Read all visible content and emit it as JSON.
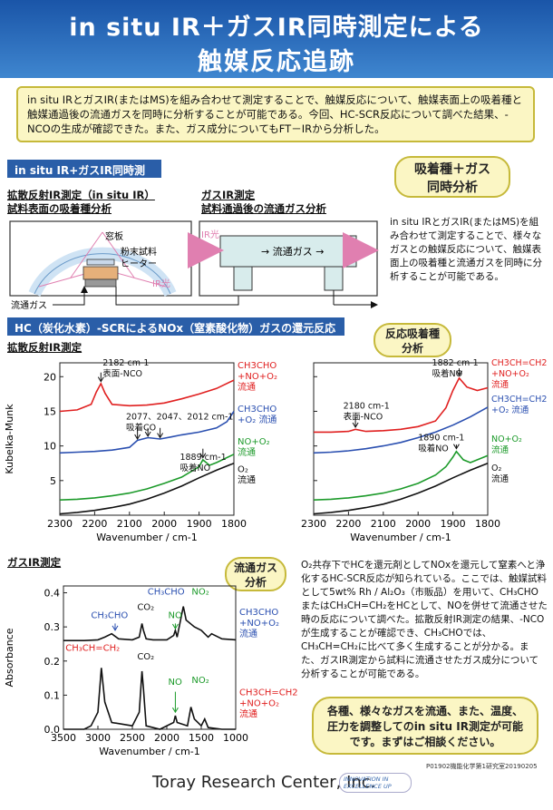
{
  "header": {
    "title_line1": "in situ IR＋ガスIR同時測定による",
    "title_line2": "触媒反応追跡"
  },
  "summary": "in situ IRとガスIR(またはMS)を組み合わせて測定することで、触媒反応について、触媒表面上の吸着種と触媒通過後の流通ガスを同時に分析することが可能である。今回、HC-SCR反応について調べた結果、-NCOの生成が確認できた。また、ガス成分についてもFT－IRから分析した。",
  "section1": {
    "bar": "in situ IR+ガスIR同時測定",
    "bubble": "吸着種＋ガス\n同時分析",
    "left_title": "拡散反射IR測定（in situ IR）",
    "left_sub": "試料表面の吸着種分析",
    "window": "窓板",
    "powder": "粉末試料",
    "heater": "ヒーター",
    "ir_light": "IR光",
    "flow_gas": "流通ガス",
    "right_title": "ガスIR測定",
    "right_sub": "試料通過後の流通ガス分析",
    "cell_label": "→ 流通ガス →",
    "ir_light2": "IR光",
    "desc": "in situ IRとガスIR(またはMS)を組み合わせて測定することで、様々なガスとの触媒反応について、触媒表面上の吸着種と流通ガスを同時に分析することが可能である。"
  },
  "section2": {
    "bar": "HC（炭化水素）-SCRによるNOx（窒素酸化物）ガスの還元反応",
    "bubble": "反応吸着種\n分析",
    "drift_title": "拡散反射IR測定",
    "gas_title": "ガスIR測定",
    "gas_bubble": "流通ガス\n分析",
    "desc": "O₂共存下でHCを還元剤としてNOxを還元して窒素へと浄化するHC-SCR反応が知られている。ここでは、触媒試料として5wt% Rh / Al₂O₃（市販品）を用いて、CH₃CHOまたはCH₃CH=CH₂をHCとして、NOを併せて流通させた時の反応について調べた。拡散反射IR測定の結果、-NCOが生成することが確認でき、CH₃CHOでは、CH₃CH=CH₂に比べて多く生成することが分かる。また、ガスIR測定から試料に流通させたガス成分について分析することが可能である。",
    "contact": "各種、様々なガスを流通、また、温度、圧力を調整してのin situ IR測定が可能です。まずはご相談ください。"
  },
  "footer": {
    "doc_id": "P01902機能化学第1研究室20190205",
    "company": "Toray Research Center, Inc.",
    "logo": "INNOVATION IN EXCELLENCE UP"
  },
  "colors": {
    "red": "#e02020",
    "blue": "#2a4fb0",
    "green": "#1c9a2a",
    "black": "#111111",
    "bar": "#2a5ea8"
  },
  "chart_data": [
    {
      "type": "line",
      "title": "CH3CHO",
      "xlabel": "Wavenumber / cm-1",
      "ylabel": "Kubelka-Munk",
      "xlim": [
        2300,
        1800
      ],
      "ylim": [
        0,
        22
      ],
      "xticks": [
        2300,
        2200,
        2100,
        2000,
        1900,
        1800
      ],
      "yticks": [
        5,
        10,
        15,
        20
      ],
      "series": [
        {
          "name": "CH3CHO +NO+O2 流通",
          "color": "#e02020",
          "x": [
            2300,
            2250,
            2210,
            2195,
            2182,
            2170,
            2150,
            2100,
            2050,
            2000,
            1950,
            1900,
            1850,
            1800
          ],
          "y": [
            15.0,
            15.2,
            16.0,
            17.8,
            19.0,
            17.6,
            16.0,
            15.8,
            15.9,
            16.2,
            16.8,
            17.5,
            18.3,
            19.5
          ]
        },
        {
          "name": "CH3CHO +O2 流通",
          "color": "#2a4fb0",
          "x": [
            2300,
            2250,
            2200,
            2150,
            2100,
            2077,
            2047,
            2012,
            1980,
            1950,
            1900,
            1850,
            1820,
            1800
          ],
          "y": [
            9.0,
            9.1,
            9.2,
            9.4,
            9.8,
            10.8,
            11.2,
            11.0,
            11.3,
            11.6,
            12.0,
            12.6,
            13.5,
            15.0
          ]
        },
        {
          "name": "NO+O2 流通",
          "color": "#1c9a2a",
          "x": [
            2300,
            2250,
            2200,
            2150,
            2100,
            2050,
            2000,
            1950,
            1900,
            1889,
            1870,
            1850,
            1800
          ],
          "y": [
            2.2,
            2.3,
            2.5,
            2.8,
            3.2,
            3.8,
            4.6,
            5.5,
            7.0,
            8.0,
            7.2,
            7.6,
            8.8
          ]
        },
        {
          "name": "O2 流通",
          "color": "#111111",
          "x": [
            2300,
            2250,
            2200,
            2150,
            2100,
            2050,
            2000,
            1950,
            1900,
            1850,
            1800
          ],
          "y": [
            0.2,
            0.4,
            0.7,
            1.1,
            1.6,
            2.3,
            3.2,
            4.2,
            5.4,
            6.5,
            7.5
          ]
        }
      ],
      "annotations": [
        {
          "text": "2182 cm-1\n表面-NCO",
          "x": 2182
        },
        {
          "text": "2077、2047、2012 cm-1\n吸着CO",
          "x": 2047
        },
        {
          "text": "1889 cm-1\n吸着NO",
          "x": 1889
        }
      ]
    },
    {
      "type": "line",
      "title": "CH3CH=CH2",
      "xlabel": "Wavenumber / cm-1",
      "ylabel": "",
      "xlim": [
        2300,
        1800
      ],
      "ylim": [
        0,
        22
      ],
      "xticks": [
        2300,
        2200,
        2100,
        2000,
        1900,
        1800
      ],
      "yticks": [
        5,
        10,
        15,
        20
      ],
      "series": [
        {
          "name": "CH3CH=CH2 +NO+O2 流通",
          "color": "#e02020",
          "x": [
            2300,
            2250,
            2200,
            2180,
            2150,
            2100,
            2050,
            2000,
            1950,
            1920,
            1900,
            1882,
            1860,
            1830,
            1800
          ],
          "y": [
            12.0,
            12.0,
            12.1,
            12.4,
            12.1,
            12.2,
            12.4,
            12.8,
            13.6,
            15.5,
            18.0,
            19.8,
            18.5,
            18.0,
            18.4
          ]
        },
        {
          "name": "CH3CH=CH2 +O2 流通",
          "color": "#2a4fb0",
          "x": [
            2300,
            2250,
            2200,
            2150,
            2100,
            2050,
            2000,
            1950,
            1900,
            1850,
            1800
          ],
          "y": [
            9.0,
            9.1,
            9.3,
            9.6,
            10.0,
            10.5,
            11.2,
            12.0,
            13.0,
            14.2,
            15.6
          ]
        },
        {
          "name": "NO+O2 流通",
          "color": "#1c9a2a",
          "x": [
            2300,
            2250,
            2200,
            2150,
            2100,
            2050,
            2000,
            1950,
            1920,
            1900,
            1890,
            1870,
            1850,
            1800
          ],
          "y": [
            2.2,
            2.3,
            2.5,
            2.8,
            3.2,
            3.8,
            4.6,
            5.8,
            7.0,
            8.4,
            9.2,
            8.0,
            7.6,
            8.6
          ]
        },
        {
          "name": "O2 流通",
          "color": "#111111",
          "x": [
            2300,
            2250,
            2200,
            2150,
            2100,
            2050,
            2000,
            1950,
            1900,
            1850,
            1800
          ],
          "y": [
            0.2,
            0.4,
            0.7,
            1.1,
            1.6,
            2.3,
            3.2,
            4.2,
            5.4,
            6.5,
            7.5
          ]
        }
      ],
      "annotations": [
        {
          "text": "2180 cm-1\n表面-NCO",
          "x": 2180
        },
        {
          "text": "1882 cm-1\n吸着NO",
          "x": 1882
        },
        {
          "text": "1890 cm-1\n吸着NO",
          "x": 1890
        }
      ]
    },
    {
      "type": "line",
      "title": "ガスIR測定",
      "xlabel": "Wavenumber / cm-1",
      "ylabel": "Absorbance",
      "xlim": [
        3500,
        1000
      ],
      "ylim": [
        0,
        0.42
      ],
      "xticks": [
        3500,
        3000,
        2500,
        2000,
        1500,
        1000
      ],
      "yticks": [
        0.0,
        0.1,
        0.2,
        0.3,
        0.4
      ],
      "series": [
        {
          "name": "CH3CHO +NO+O2 流通",
          "color": "#111111",
          "x": [
            3500,
            3200,
            3000,
            2900,
            2800,
            2700,
            2500,
            2400,
            2360,
            2340,
            2300,
            2200,
            2000,
            1900,
            1876,
            1850,
            1760,
            1740,
            1720,
            1600,
            1500,
            1400,
            1350,
            1200,
            1000
          ],
          "y": [
            0.26,
            0.26,
            0.262,
            0.27,
            0.28,
            0.265,
            0.262,
            0.27,
            0.31,
            0.29,
            0.265,
            0.262,
            0.262,
            0.275,
            0.29,
            0.27,
            0.36,
            0.34,
            0.32,
            0.3,
            0.29,
            0.27,
            0.28,
            0.265,
            0.262
          ]
        },
        {
          "name": "CH3CH=CH2 +NO+O2 流通",
          "color": "#111111",
          "x": [
            3500,
            3200,
            3100,
            3000,
            2950,
            2900,
            2800,
            2500,
            2400,
            2360,
            2340,
            2300,
            2100,
            1900,
            1876,
            1850,
            1700,
            1650,
            1600,
            1500,
            1450,
            1400,
            1200,
            1000
          ],
          "y": [
            0.0,
            0.0,
            0.01,
            0.05,
            0.18,
            0.08,
            0.02,
            0.01,
            0.05,
            0.17,
            0.12,
            0.01,
            0.0,
            0.02,
            0.04,
            0.02,
            0.01,
            0.065,
            0.03,
            0.01,
            0.03,
            0.005,
            0.0,
            0.0
          ]
        }
      ],
      "annotations": [
        {
          "text": "CH3CHO",
          "x": 2750
        },
        {
          "text": "CO2",
          "x": 2350
        },
        {
          "text": "NO",
          "x": 1876
        },
        {
          "text": "CH3CHO",
          "x": 1760
        },
        {
          "text": "NO2",
          "x": 1620
        },
        {
          "text": "CH3CH=CH2",
          "x": 2950
        },
        {
          "text": "CO2",
          "x": 2350
        },
        {
          "text": "NO",
          "x": 1876
        },
        {
          "text": "NO2",
          "x": 1620
        }
      ]
    }
  ]
}
